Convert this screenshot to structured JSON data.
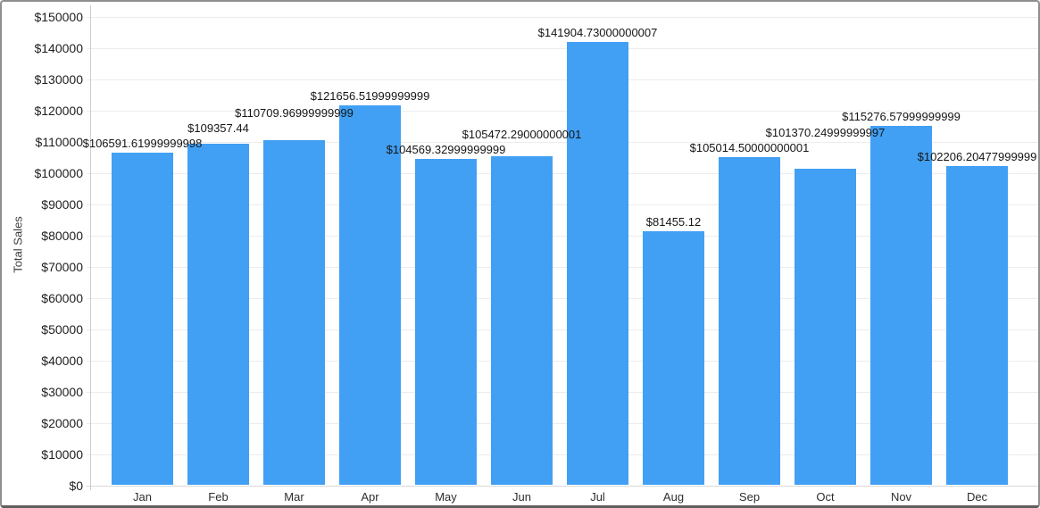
{
  "chart_data": {
    "type": "bar",
    "title": "",
    "xlabel": "",
    "ylabel": "Total Sales",
    "categories": [
      "Jan",
      "Feb",
      "Mar",
      "Apr",
      "May",
      "Jun",
      "Jul",
      "Aug",
      "Sep",
      "Oct",
      "Nov",
      "Dec"
    ],
    "values": [
      106591.61999999998,
      109357.44,
      110709.96999999999,
      121656.51999999999,
      104569.32999999999,
      105472.29000000001,
      141904.73000000007,
      81455.12,
      105014.50000000001,
      101370.24999999997,
      115276.57999999999,
      102206.20477999999
    ],
    "bar_labels": [
      "$106591.61999999998",
      "$109357.44",
      "$110709.96999999999",
      "$121656.51999999999",
      "$104569.32999999999",
      "$105472.29000000001",
      "$141904.73000000007",
      "$81455.12",
      "$105014.50000000001",
      "$101370.24999999997",
      "$115276.57999999999",
      "$102206.20477999999"
    ],
    "y_ticks": [
      "$0",
      "$10000",
      "$20000",
      "$30000",
      "$40000",
      "$50000",
      "$60000",
      "$70000",
      "$80000",
      "$90000",
      "$100000",
      "$110000",
      "$120000",
      "$130000",
      "$140000",
      "$150000"
    ],
    "ylim": [
      0,
      150000
    ],
    "grid": true,
    "legend": false,
    "bar_color": "#41a0f4",
    "gridline_color": "#ececec",
    "axis_line_color": "#cccccc",
    "border_color": "#8f8f8f"
  }
}
